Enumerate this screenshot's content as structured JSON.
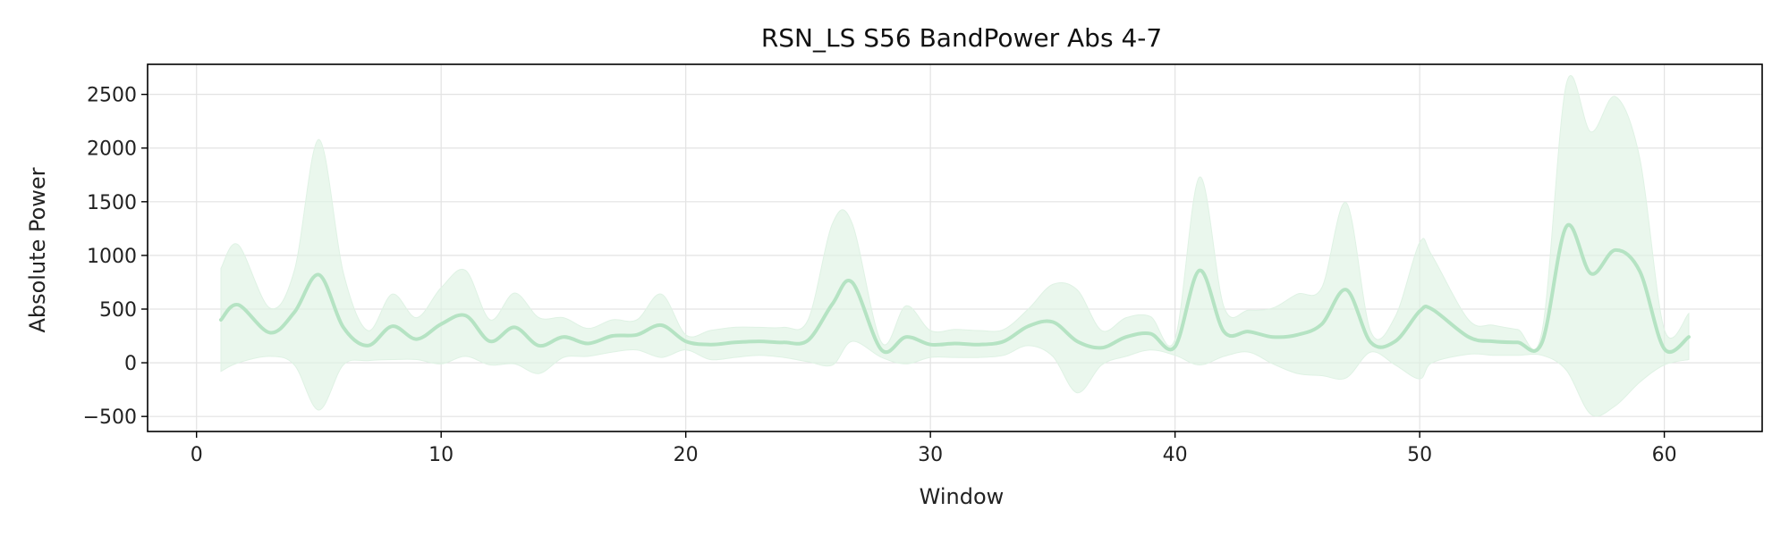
{
  "chart_data": {
    "type": "line",
    "title": "RSN_LS S56 BandPower Abs 4-7",
    "xlabel": "Window",
    "ylabel": "Absolute Power",
    "xlim": [
      -2,
      64
    ],
    "ylim": [
      -640,
      2780
    ],
    "xticks": [
      0,
      10,
      20,
      30,
      40,
      50,
      60
    ],
    "yticks": [
      -500,
      0,
      500,
      1000,
      1500,
      2000,
      2500
    ],
    "ytick_labels": [
      "−500",
      "0",
      "500",
      "1000",
      "1500",
      "2000",
      "2500"
    ],
    "grid": true,
    "legend": "none",
    "line_color": "#b5e3c3",
    "band_color": "#dff2e4",
    "series": [
      {
        "x": [
          1,
          1.7,
          3,
          4,
          5,
          6,
          7,
          8,
          9,
          10,
          11,
          12,
          13,
          14,
          15,
          16,
          17,
          18,
          19,
          20,
          21,
          22,
          23,
          24,
          25,
          26,
          26.8,
          28,
          29,
          30,
          31,
          32,
          33,
          34,
          35,
          36,
          37,
          38,
          39,
          40,
          41,
          42,
          43,
          44,
          45,
          46,
          47,
          48,
          49,
          50,
          50.5,
          52,
          53,
          54,
          55,
          56,
          57,
          58,
          59,
          60,
          61
        ],
        "mean": [
          400,
          540,
          280,
          470,
          820,
          330,
          160,
          340,
          220,
          360,
          440,
          200,
          330,
          160,
          240,
          180,
          250,
          260,
          350,
          200,
          170,
          190,
          200,
          190,
          210,
          550,
          750,
          120,
          240,
          170,
          180,
          170,
          200,
          340,
          380,
          200,
          140,
          240,
          270,
          150,
          860,
          290,
          290,
          240,
          260,
          360,
          680,
          190,
          200,
          480,
          500,
          240,
          200,
          190,
          190,
          1270,
          830,
          1050,
          850,
          130,
          240
        ],
        "upper": [
          880,
          1100,
          510,
          860,
          2080,
          840,
          300,
          640,
          420,
          700,
          860,
          400,
          650,
          420,
          420,
          320,
          400,
          400,
          640,
          260,
          300,
          330,
          330,
          330,
          400,
          1300,
          1300,
          190,
          530,
          300,
          310,
          300,
          310,
          500,
          730,
          680,
          300,
          420,
          430,
          220,
          1730,
          520,
          490,
          510,
          640,
          700,
          1490,
          290,
          430,
          1120,
          1000,
          400,
          350,
          310,
          290,
          2600,
          2150,
          2480,
          1900,
          310,
          460
        ],
        "lower": [
          -80,
          0,
          60,
          -20,
          -440,
          -20,
          20,
          30,
          30,
          -10,
          60,
          -20,
          -10,
          -100,
          50,
          60,
          100,
          120,
          50,
          120,
          30,
          50,
          70,
          50,
          10,
          -20,
          200,
          50,
          -10,
          50,
          50,
          50,
          70,
          160,
          60,
          -280,
          -20,
          60,
          120,
          70,
          -20,
          60,
          100,
          -10,
          -100,
          -120,
          -140,
          100,
          -20,
          -150,
          0,
          80,
          70,
          70,
          70,
          -70,
          -480,
          -400,
          -180,
          -20,
          30
        ]
      }
    ]
  }
}
